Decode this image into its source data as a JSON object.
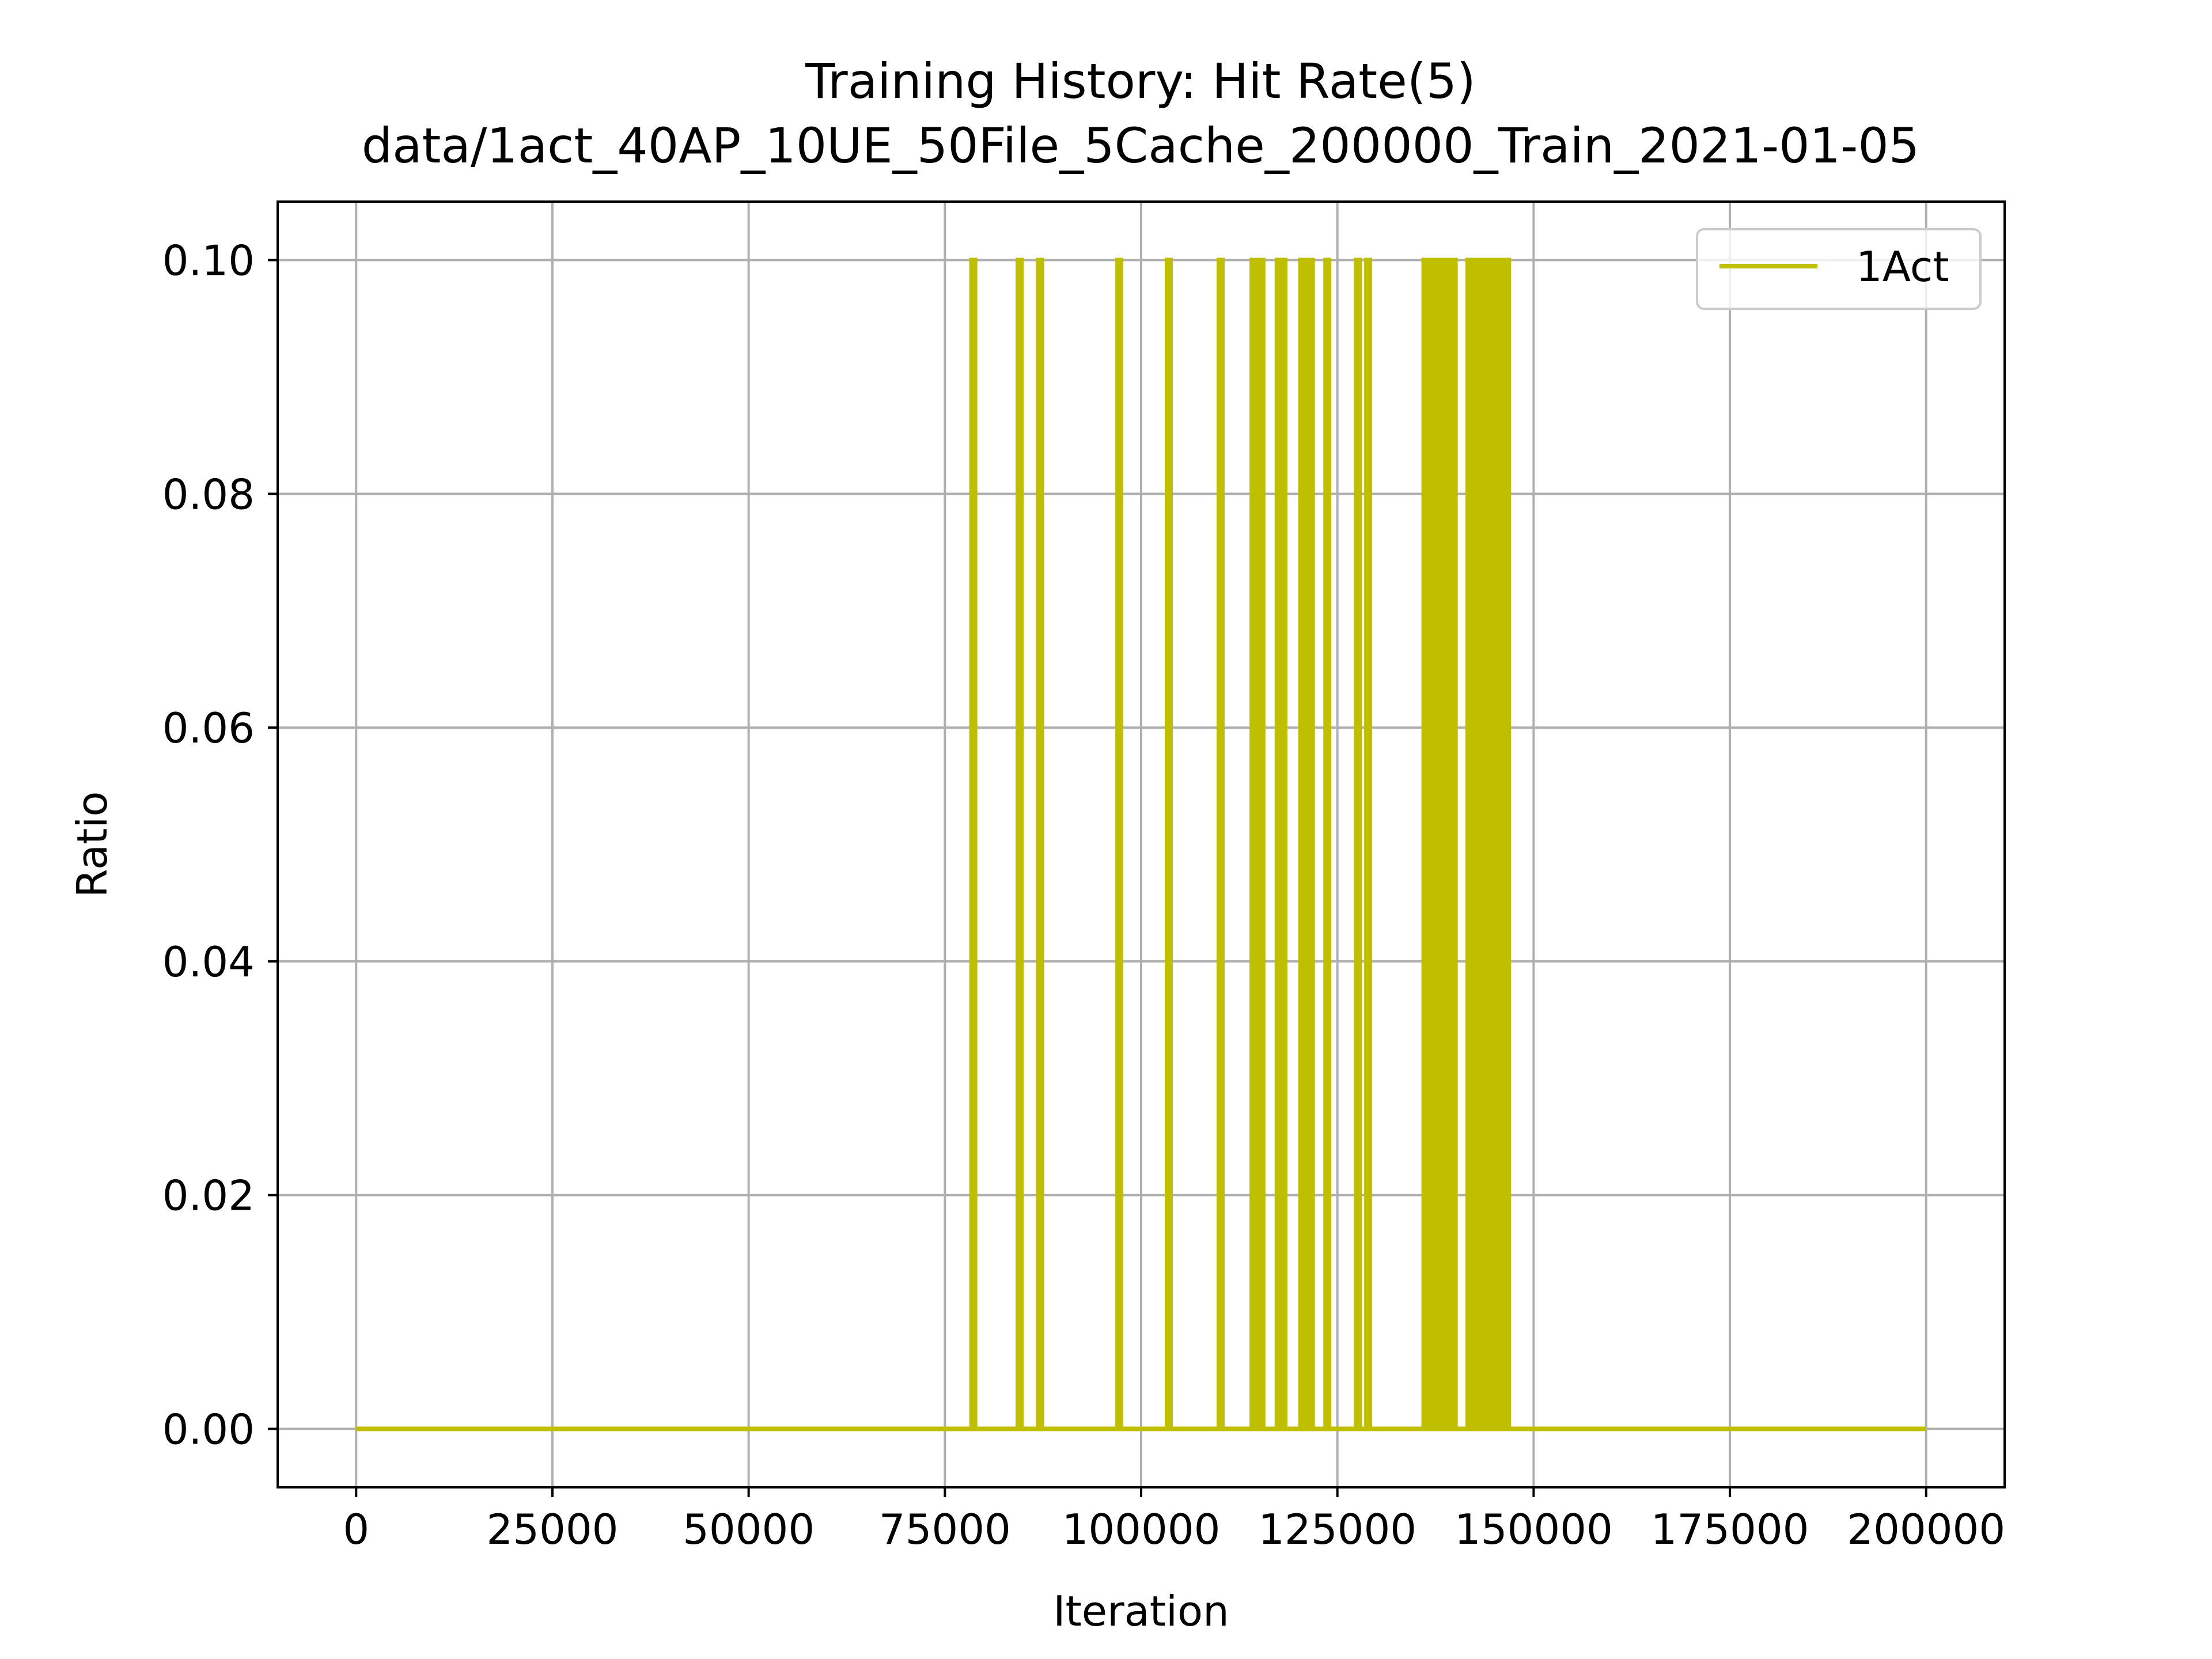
{
  "chart_data": {
    "type": "line",
    "title": "Training History: Hit Rate(5)",
    "subtitle": "data/1act_40AP_10UE_50File_5Cache_200000_Train_2021-01-05",
    "xlabel": "Iteration",
    "ylabel": "Ratio",
    "xlim": [
      -10000,
      210000
    ],
    "ylim": [
      -0.005,
      0.105
    ],
    "xticks": [
      0,
      25000,
      50000,
      75000,
      100000,
      125000,
      150000,
      175000,
      200000
    ],
    "xtick_labels": [
      "0",
      "25000",
      "50000",
      "75000",
      "100000",
      "125000",
      "150000",
      "175000",
      "200000"
    ],
    "yticks": [
      0.0,
      0.02,
      0.04,
      0.06,
      0.08,
      0.1
    ],
    "ytick_labels": [
      "0.00",
      "0.02",
      "0.04",
      "0.06",
      "0.08",
      "0.10"
    ],
    "grid": true,
    "legend_position": "top-right",
    "series": [
      {
        "name": "1Act",
        "color": "#bfbf00",
        "baseline": 0.0,
        "x_range": [
          0,
          200000
        ],
        "spike_value": 0.1,
        "spike_x": [
          78400,
          84300,
          86900,
          97000,
          103300,
          109900,
          114100,
          114700,
          115100,
          117300,
          117900,
          120300,
          120900,
          121400,
          123500,
          127400,
          128700,
          136000,
          136400,
          136800,
          137200,
          137600,
          138000,
          138400,
          138800,
          139200,
          139600,
          141600,
          142000,
          142400,
          142800,
          143200,
          143600,
          144000,
          144400,
          144800,
          145200,
          145600,
          146000,
          146400
        ]
      }
    ]
  }
}
